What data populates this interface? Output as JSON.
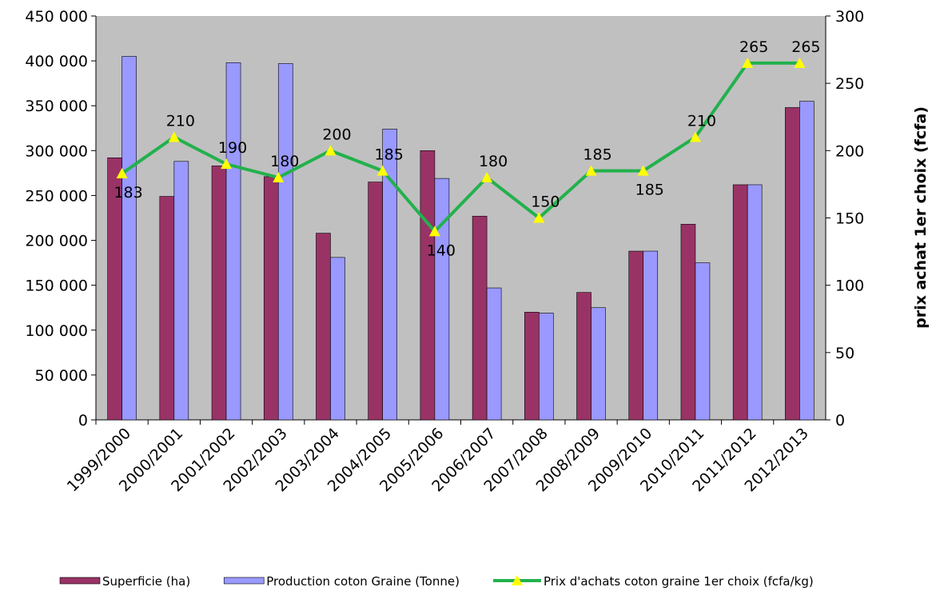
{
  "chart_data": {
    "type": "bar_line",
    "y2_title": "prix achat  1er choix (fcfa)",
    "categories": [
      "1999/2000",
      "2000/2001",
      "2001/2002",
      "2002/2003",
      "2003/2004",
      "2004/2005",
      "2005/2006",
      "2006/2007",
      "2007/2008",
      "2008/2009",
      "2009/2010",
      "2010/2011",
      "2011/2012",
      "2012/2013"
    ],
    "series": [
      {
        "name": "Superficie (ha)",
        "color": "#993366",
        "type": "bar",
        "values": [
          292000,
          249000,
          283000,
          271000,
          208000,
          265000,
          300000,
          227000,
          120000,
          142000,
          188000,
          218000,
          262000,
          348000
        ]
      },
      {
        "name": "Production coton Graine (Tonne)",
        "color": "#9999ff",
        "type": "bar",
        "values": [
          405000,
          288000,
          398000,
          397000,
          181000,
          324000,
          269000,
          147000,
          119000,
          125000,
          188000,
          175000,
          262000,
          355000
        ]
      },
      {
        "name": "Prix d'achats coton graine 1er choix (fcfa/kg)",
        "color": "#22b14c",
        "marker_color": "#ffff00",
        "type": "line",
        "axis": "y2",
        "values": [
          183,
          210,
          190,
          180,
          200,
          185,
          140,
          180,
          150,
          185,
          185,
          210,
          265,
          265
        ]
      }
    ],
    "ylim": [
      0,
      450000
    ],
    "yticks": [
      {
        "value": 0,
        "label": "0"
      },
      {
        "value": 50000,
        "label": "50 000"
      },
      {
        "value": 100000,
        "label": "100 000"
      },
      {
        "value": 150000,
        "label": "150 000"
      },
      {
        "value": 200000,
        "label": "200 000"
      },
      {
        "value": 250000,
        "label": "250 000"
      },
      {
        "value": 300000,
        "label": "300 000"
      },
      {
        "value": 350000,
        "label": "350 000"
      },
      {
        "value": 400000,
        "label": "400 000"
      },
      {
        "value": 450000,
        "label": "450 000"
      }
    ],
    "y2lim": [
      0,
      300
    ],
    "y2ticks": [
      0,
      50,
      100,
      150,
      200,
      250,
      300
    ],
    "plot_background": "#c0c0c0"
  }
}
